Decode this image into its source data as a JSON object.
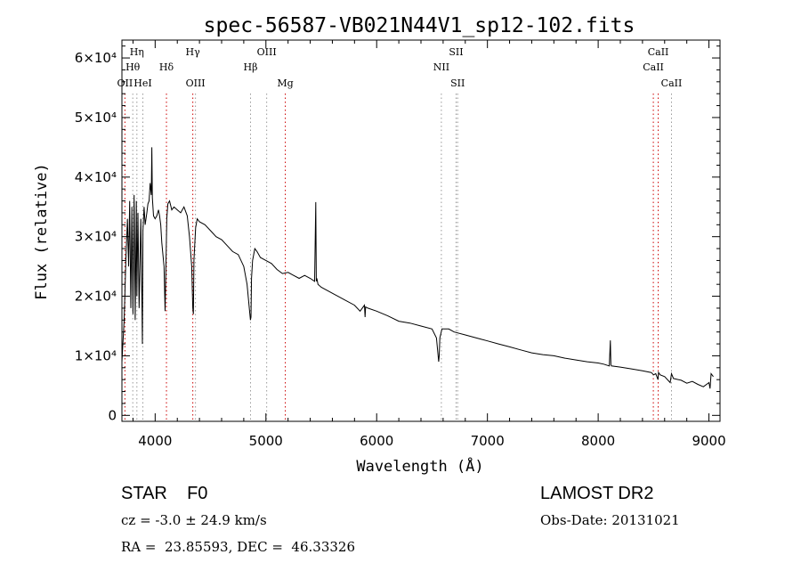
{
  "chart_data": {
    "type": "line",
    "title": "spec-56587-VB021N44V1_sp12-102.fits",
    "xlabel": "Wavelength (Å)",
    "ylabel": "Flux (relative)",
    "xlim": [
      3700,
      9100
    ],
    "ylim": [
      -1000,
      63000
    ],
    "x_ticks": [
      4000,
      5000,
      6000,
      7000,
      8000,
      9000
    ],
    "y_ticks": [
      {
        "value": 0,
        "label": "0"
      },
      {
        "value": 10000,
        "label": "1×10⁴"
      },
      {
        "value": 20000,
        "label": "2×10⁴"
      },
      {
        "value": 30000,
        "label": "3×10⁴"
      },
      {
        "value": 40000,
        "label": "4×10⁴"
      },
      {
        "value": 50000,
        "label": "5×10⁴"
      },
      {
        "value": 60000,
        "label": "6×10⁴"
      }
    ],
    "series": [
      {
        "x": [
          3700,
          3720,
          3735,
          3750,
          3760,
          3770,
          3780,
          3790,
          3800,
          3810,
          3820,
          3830,
          3835,
          3845,
          3855,
          3870,
          3880,
          3885,
          3890,
          3900,
          3910,
          3925,
          3935,
          3945,
          3955,
          3965,
          3970,
          3975,
          3985,
          4000,
          4015,
          4030,
          4040,
          4050,
          4060,
          4080,
          4090,
          4100,
          4105,
          4115,
          4130,
          4150,
          4170,
          4200,
          4230,
          4260,
          4290,
          4310,
          4330,
          4340,
          4345,
          4350,
          4365,
          4380,
          4400,
          4450,
          4500,
          4550,
          4600,
          4650,
          4700,
          4750,
          4800,
          4830,
          4850,
          4860,
          4865,
          4870,
          4880,
          4900,
          4920,
          4950,
          5000,
          5050,
          5100,
          5150,
          5200,
          5250,
          5300,
          5350,
          5400,
          5440,
          5450,
          5455,
          5460,
          5470,
          5500,
          5600,
          5700,
          5800,
          5850,
          5890,
          5895,
          5900,
          5920,
          6000,
          6100,
          6200,
          6300,
          6400,
          6500,
          6540,
          6560,
          6565,
          6570,
          6590,
          6650,
          6700,
          6800,
          6900,
          7000,
          7100,
          7200,
          7300,
          7400,
          7500,
          7600,
          7700,
          7800,
          7900,
          8000,
          8050,
          8100,
          8110,
          8115,
          8120,
          8200,
          8300,
          8400,
          8480,
          8500,
          8520,
          8540,
          8545,
          8560,
          8600,
          8650,
          8662,
          8680,
          8750,
          8800,
          8850,
          8900,
          8950,
          9000,
          9010,
          9020,
          9040
        ],
        "y": [
          9000,
          16000,
          26000,
          33000,
          25000,
          36000,
          18000,
          35000,
          17000,
          37000,
          16000,
          36000,
          20000,
          34000,
          18000,
          33000,
          20000,
          12000,
          31000,
          35000,
          32000,
          34000,
          35500,
          36000,
          39000,
          37000,
          45000,
          36500,
          33500,
          33000,
          33500,
          34500,
          33500,
          32000,
          29000,
          25000,
          17500,
          28000,
          33000,
          35500,
          36000,
          34500,
          35000,
          34500,
          34000,
          35000,
          33500,
          30000,
          25000,
          18000,
          17000,
          26000,
          31500,
          33000,
          32500,
          32000,
          31000,
          30000,
          29500,
          28500,
          27500,
          27000,
          25000,
          22000,
          18000,
          16000,
          16500,
          23000,
          26000,
          28000,
          27500,
          26500,
          26000,
          25500,
          24500,
          23800,
          24000,
          23500,
          23000,
          23500,
          23000,
          22500,
          35800,
          22500,
          23000,
          22000,
          21500,
          20500,
          19500,
          18500,
          17500,
          18500,
          16500,
          18200,
          18000,
          17500,
          16700,
          15800,
          15500,
          15000,
          14500,
          13000,
          9000,
          10000,
          13000,
          14500,
          14500,
          14000,
          13500,
          13000,
          12500,
          12000,
          11500,
          11000,
          10500,
          10200,
          10000,
          9600,
          9300,
          9000,
          8800,
          8600,
          8300,
          12600,
          8500,
          8300,
          8100,
          7800,
          7500,
          7200,
          6800,
          7000,
          6000,
          7200,
          6800,
          6500,
          5500,
          7000,
          6200,
          5900,
          5400,
          5700,
          5200,
          4800,
          5500,
          4500,
          7000,
          6500
        ]
      }
    ],
    "line_colors": {
      "spectrum": "#000000",
      "marker_red": "#cc0000",
      "marker_gray": "#999999"
    },
    "line_markers": [
      {
        "label": "OII",
        "wavelength": 3727,
        "color": "#cc0000",
        "row": 3
      },
      {
        "label": "Hθ",
        "wavelength": 3798,
        "color": "#999999",
        "row": 2
      },
      {
        "label": "Hη",
        "wavelength": 3835,
        "color": "#999999",
        "row": 1
      },
      {
        "label": "HeI",
        "wavelength": 3889,
        "color": "#999999",
        "row": 3
      },
      {
        "label": "Hδ",
        "wavelength": 4102,
        "color": "#cc0000",
        "row": 2
      },
      {
        "label": "Hγ",
        "wavelength": 4340,
        "color": "#cc0000",
        "row": 1
      },
      {
        "label": "OIII",
        "wavelength": 4364,
        "color": "#999999",
        "row": 3
      },
      {
        "label": "Hβ",
        "wavelength": 4861,
        "color": "#999999",
        "row": 2
      },
      {
        "label": "OIII",
        "wavelength": 5007,
        "color": "#999999",
        "row": 1
      },
      {
        "label": "Mg",
        "wavelength": 5175,
        "color": "#cc0000",
        "row": 3
      },
      {
        "label": "NII",
        "wavelength": 6584,
        "color": "#999999",
        "row": 2
      },
      {
        "label": "SII",
        "wavelength": 6717,
        "color": "#999999",
        "row": 1
      },
      {
        "label": "SII",
        "wavelength": 6731,
        "color": "#999999",
        "row": 3
      },
      {
        "label": "CaII",
        "wavelength": 8498,
        "color": "#cc0000",
        "row": 2
      },
      {
        "label": "CaII",
        "wavelength": 8542,
        "color": "#cc0000",
        "row": 1
      },
      {
        "label": "CaII",
        "wavelength": 8662,
        "color": "#999999",
        "row": 3
      }
    ],
    "grid": false,
    "legend": "none"
  },
  "info": {
    "class_line": "STAR    F0",
    "survey": "LAMOST DR2",
    "cz_line": "cz = -3.0 ± 24.9 km/s",
    "obs_date": "Obs-Date: 20131021",
    "coords_line": "RA =  23.85593, DEC =  46.33326"
  }
}
